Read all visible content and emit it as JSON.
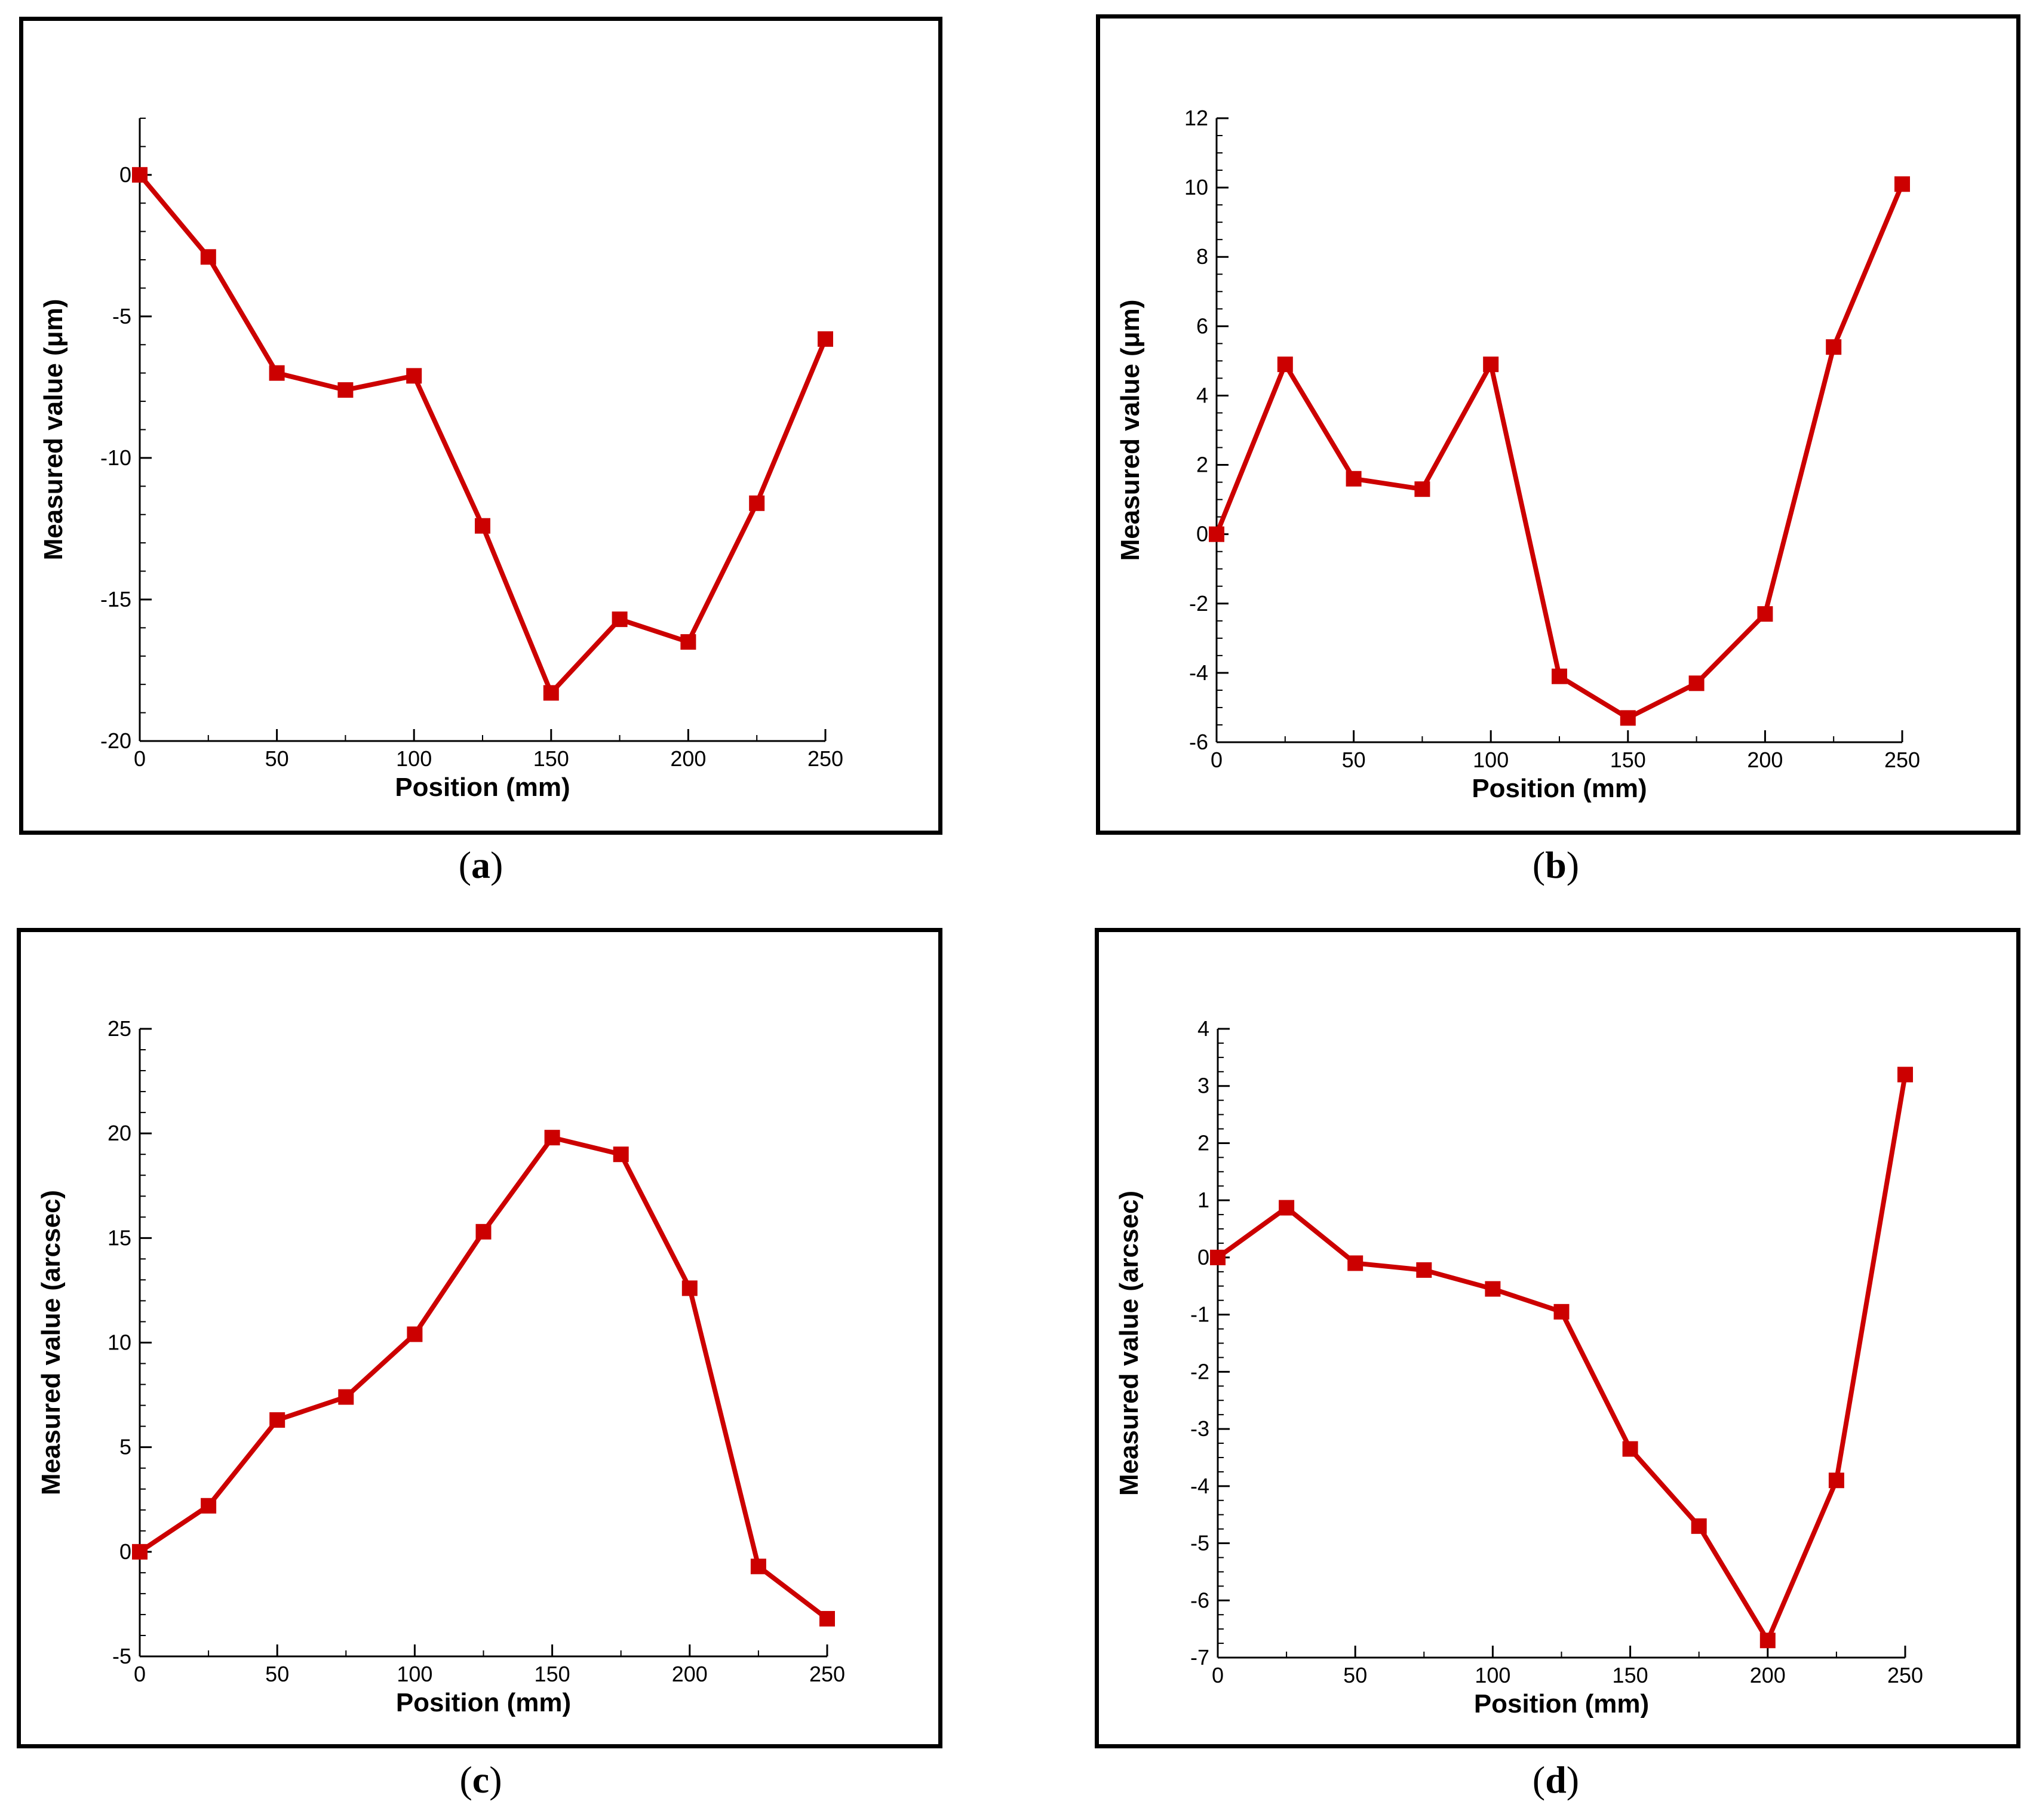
{
  "chart_data": [
    {
      "type": "line",
      "caption_letter": "a",
      "xlabel": "Position (mm)",
      "ylabel": "Measured value (μm)",
      "xlim": [
        0,
        250
      ],
      "ylim": [
        -20,
        2
      ],
      "xticks": [
        0,
        50,
        100,
        150,
        200,
        250
      ],
      "yticks": [
        -20,
        -15,
        -10,
        -5,
        0
      ],
      "x_minor_step": 25,
      "y_minor_step": 1,
      "grid": false,
      "series": [
        {
          "name": "Measured value",
          "color": "#cc0000",
          "marker": "square",
          "x": [
            0,
            25,
            50,
            75,
            100,
            125,
            150,
            175,
            200,
            225,
            250
          ],
          "y": [
            0,
            -2.9,
            -7.0,
            -7.6,
            -7.1,
            -12.4,
            -18.3,
            -15.7,
            -16.5,
            -11.6,
            -5.8
          ]
        }
      ]
    },
    {
      "type": "line",
      "caption_letter": "b",
      "xlabel": "Position (mm)",
      "ylabel": "Measured value (μm)",
      "xlim": [
        0,
        250
      ],
      "ylim": [
        -6,
        12
      ],
      "xticks": [
        0,
        50,
        100,
        150,
        200,
        250
      ],
      "yticks": [
        -6,
        -4,
        -2,
        0,
        2,
        4,
        6,
        8,
        10,
        12
      ],
      "x_minor_step": 25,
      "y_minor_step": 0.5,
      "grid": false,
      "series": [
        {
          "name": "Measured value",
          "color": "#cc0000",
          "marker": "square",
          "x": [
            0,
            25,
            50,
            75,
            100,
            125,
            150,
            175,
            200,
            225,
            250
          ],
          "y": [
            0,
            4.9,
            1.6,
            1.3,
            4.9,
            -4.1,
            -5.3,
            -4.3,
            -2.3,
            5.4,
            10.1
          ]
        }
      ]
    },
    {
      "type": "line",
      "caption_letter": "c",
      "xlabel": "Position (mm)",
      "ylabel": "Measured value (arcsec)",
      "xlim": [
        0,
        250
      ],
      "ylim": [
        -5,
        25
      ],
      "xticks": [
        0,
        50,
        100,
        150,
        200,
        250
      ],
      "yticks": [
        -5,
        0,
        5,
        10,
        15,
        20,
        25
      ],
      "x_minor_step": 25,
      "y_minor_step": 1,
      "grid": false,
      "series": [
        {
          "name": "Measured value",
          "color": "#cc0000",
          "marker": "square",
          "x": [
            0,
            25,
            50,
            75,
            100,
            125,
            150,
            175,
            200,
            225,
            250
          ],
          "y": [
            0,
            2.2,
            6.3,
            7.4,
            10.4,
            15.3,
            19.8,
            19.0,
            12.6,
            -0.7,
            -3.2
          ]
        }
      ]
    },
    {
      "type": "line",
      "caption_letter": "d",
      "xlabel": "Position (mm)",
      "ylabel": "Measured value (arcsec)",
      "xlim": [
        0,
        250
      ],
      "ylim": [
        -7,
        4
      ],
      "xticks": [
        0,
        50,
        100,
        150,
        200,
        250
      ],
      "yticks": [
        -7,
        -6,
        -5,
        -4,
        -3,
        -2,
        -1,
        0,
        1,
        2,
        3,
        4
      ],
      "x_minor_step": 25,
      "y_minor_step": 0.25,
      "grid": false,
      "series": [
        {
          "name": "Measured value",
          "color": "#cc0000",
          "marker": "square",
          "x": [
            0,
            25,
            50,
            75,
            100,
            125,
            150,
            175,
            200,
            225,
            250
          ],
          "y": [
            0,
            0.87,
            -0.1,
            -0.22,
            -0.55,
            -0.95,
            -3.35,
            -4.7,
            -6.7,
            -3.9,
            3.2
          ]
        }
      ]
    }
  ]
}
